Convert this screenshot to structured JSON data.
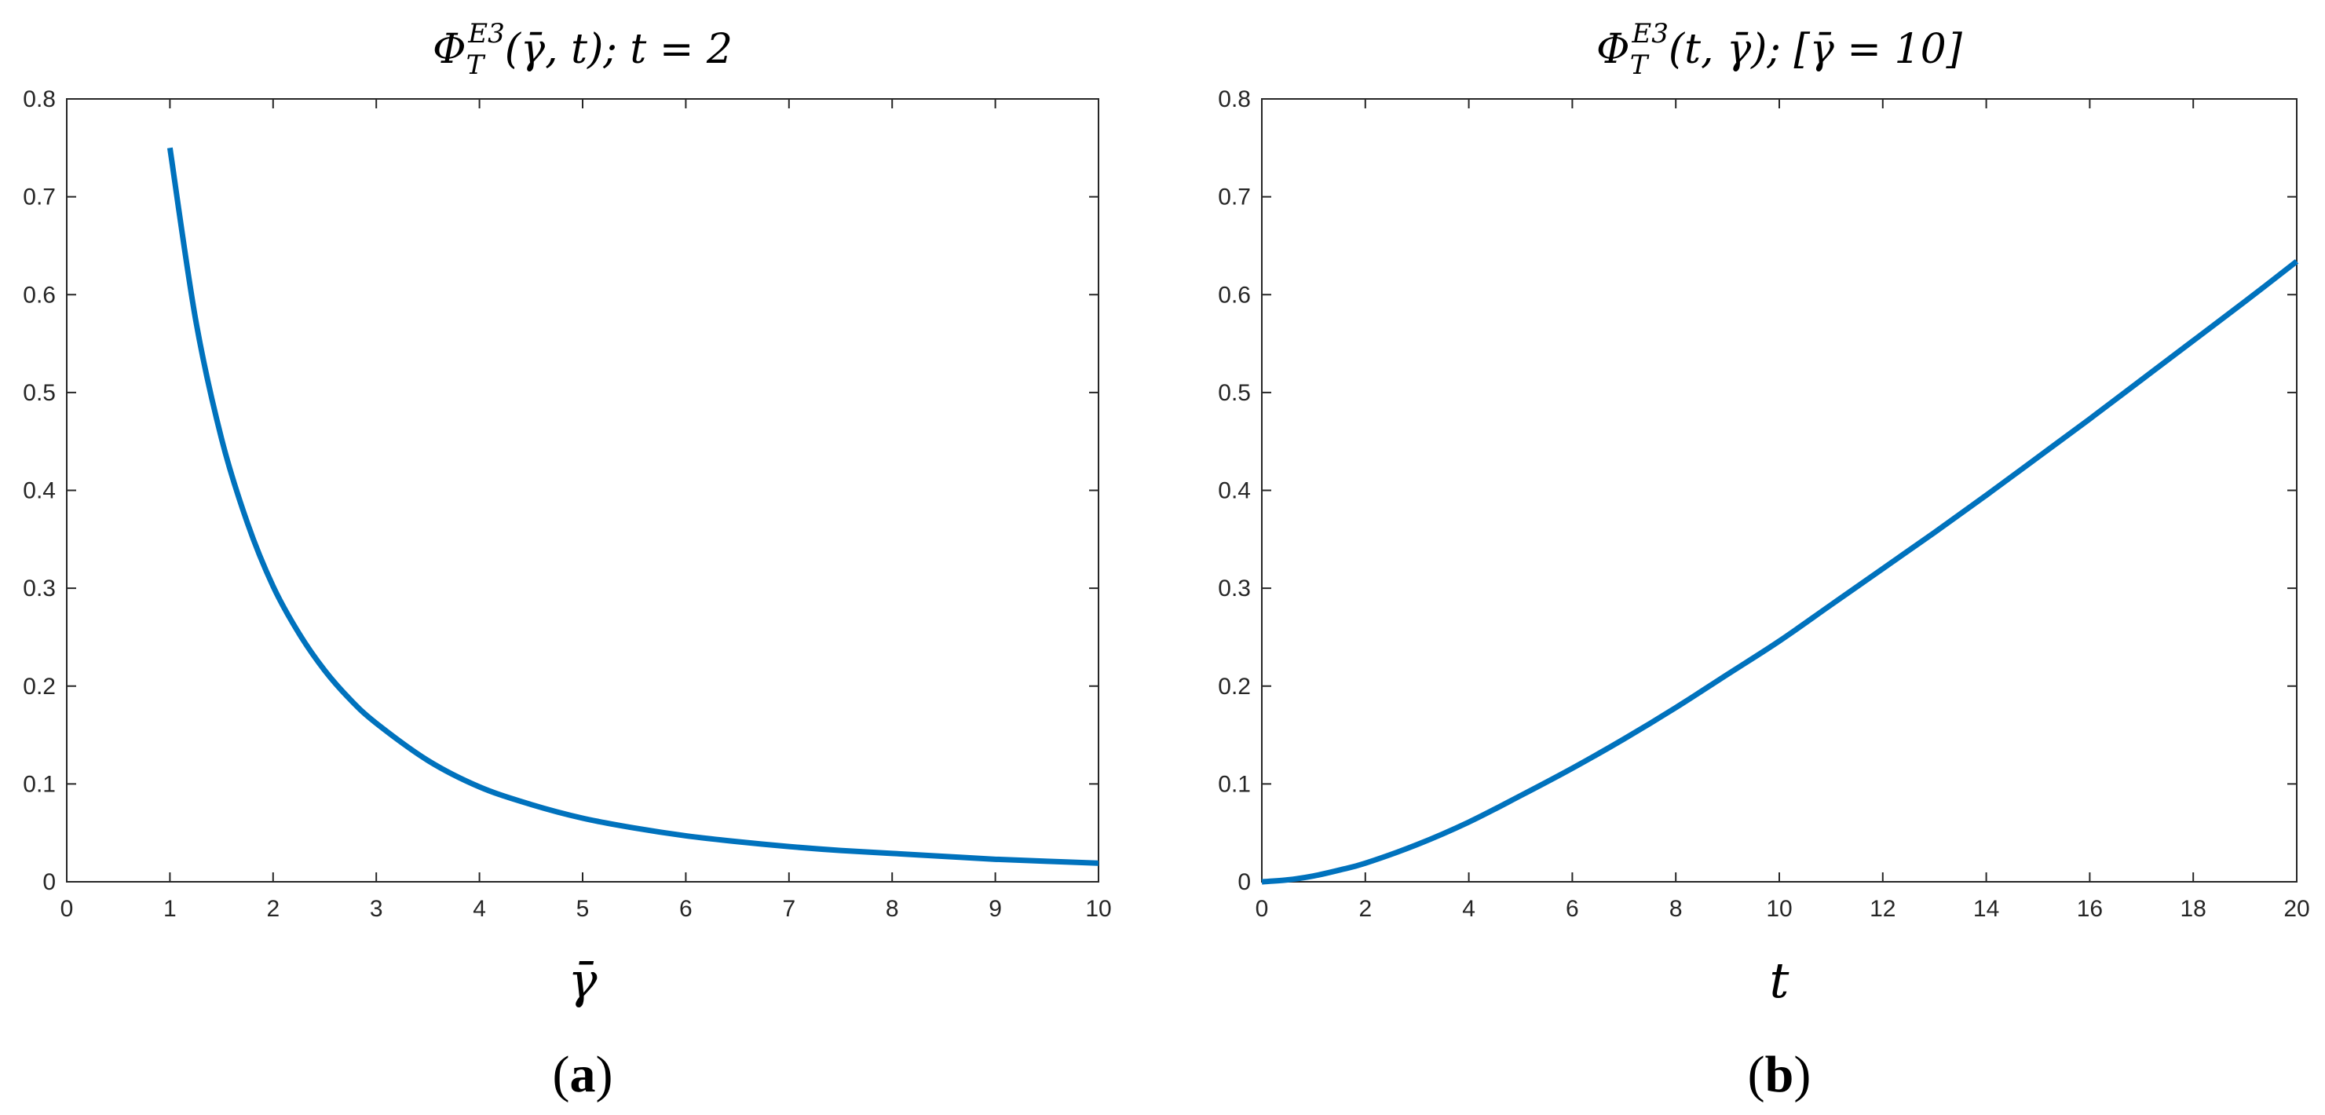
{
  "chart_data": [
    {
      "type": "line",
      "panel_label": "(a)",
      "title": "Φ_T^E3(γ̄, t); t = 2",
      "title_parts": {
        "base": "Φ",
        "sub": "T",
        "sup": "E3",
        "args": "(γ̄, t); t = 2"
      },
      "xlabel": "γ̄",
      "ylabel": "",
      "xlim": [
        0,
        10
      ],
      "ylim": [
        0,
        0.8
      ],
      "xticks": [
        0,
        1,
        2,
        3,
        4,
        5,
        6,
        7,
        8,
        9,
        10
      ],
      "xtick_labels": [
        "0",
        "1",
        "2",
        "3",
        "4",
        "5",
        "6",
        "7",
        "8",
        "9",
        "10"
      ],
      "yticks": [
        0,
        0.1,
        0.2,
        0.3,
        0.4,
        0.5,
        0.6,
        0.7,
        0.8
      ],
      "ytick_labels": [
        "0",
        "0.1",
        "0.2",
        "0.3",
        "0.4",
        "0.5",
        "0.6",
        "0.7",
        "0.8"
      ],
      "grid": false,
      "color": "#0072BD",
      "series": [
        {
          "x": [
            1,
            1.25,
            1.5,
            1.75,
            2,
            2.25,
            2.5,
            2.75,
            3,
            3.5,
            4,
            4.5,
            5,
            5.5,
            6,
            6.5,
            7,
            7.5,
            8,
            8.5,
            9,
            9.5,
            10
          ],
          "values": [
            0.75,
            0.574,
            0.453,
            0.367,
            0.302,
            0.254,
            0.216,
            0.186,
            0.162,
            0.124,
            0.097,
            0.079,
            0.065,
            0.055,
            0.047,
            0.041,
            0.036,
            0.032,
            0.029,
            0.026,
            0.023,
            0.021,
            0.019
          ]
        }
      ]
    },
    {
      "type": "line",
      "panel_label": "(b)",
      "title": "Φ_T^E3(t, γ̄); [γ̄ = 10]",
      "title_parts": {
        "base": "Φ",
        "sub": "T",
        "sup": "E3",
        "args": "(t, γ̄); [γ̄ = 10]"
      },
      "xlabel": "t",
      "ylabel": "",
      "xlim": [
        0,
        20
      ],
      "ylim": [
        0,
        0.8
      ],
      "xticks": [
        0,
        2,
        4,
        6,
        8,
        10,
        12,
        14,
        16,
        18,
        20
      ],
      "xtick_labels": [
        "0",
        "2",
        "4",
        "6",
        "8",
        "10",
        "12",
        "14",
        "16",
        "18",
        "20"
      ],
      "yticks": [
        0,
        0.1,
        0.2,
        0.3,
        0.4,
        0.5,
        0.6,
        0.7,
        0.8
      ],
      "ytick_labels": [
        "0",
        "0.1",
        "0.2",
        "0.3",
        "0.4",
        "0.5",
        "0.6",
        "0.7",
        "0.8"
      ],
      "grid": false,
      "color": "#0072BD",
      "series": [
        {
          "x": [
            0,
            0.5,
            1,
            1.5,
            2,
            3,
            4,
            5,
            6,
            7,
            8,
            9,
            10,
            11,
            12,
            13,
            14,
            15,
            16,
            17,
            18,
            19,
            20
          ],
          "values": [
            0,
            0.002,
            0.006,
            0.012,
            0.019,
            0.038,
            0.061,
            0.088,
            0.116,
            0.146,
            0.178,
            0.212,
            0.246,
            0.283,
            0.32,
            0.357,
            0.395,
            0.434,
            0.473,
            0.513,
            0.553,
            0.593,
            0.634
          ]
        }
      ]
    }
  ]
}
